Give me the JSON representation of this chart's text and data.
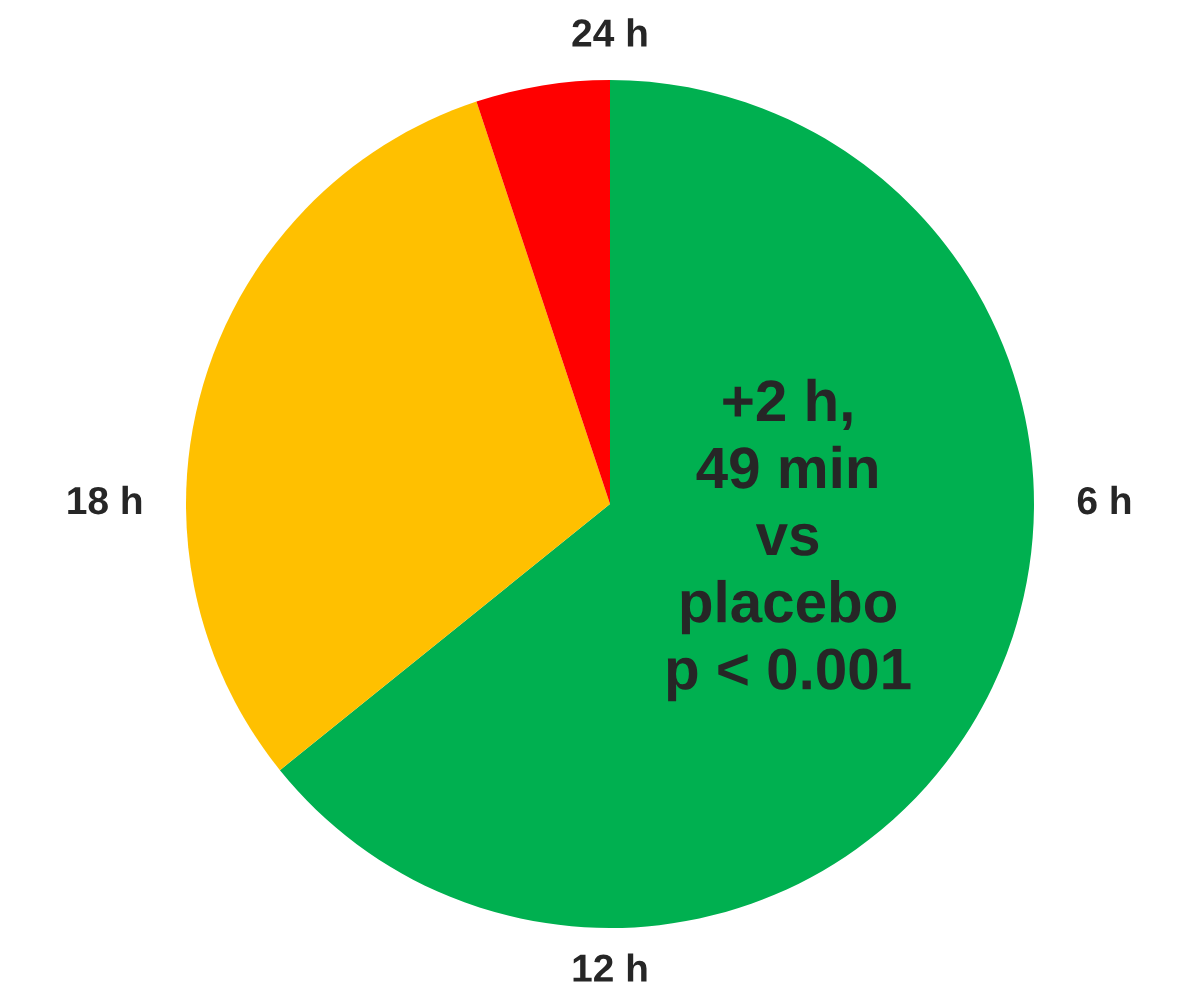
{
  "chart_data": {
    "type": "pie",
    "categories": [
      null,
      null,
      null
    ],
    "values": [
      64.2,
      30.7,
      5.1
    ],
    "colors": [
      "#00b050",
      "#ffc000",
      "#ff0000"
    ],
    "annotations": [
      "24 h",
      "6 h",
      "12 h",
      "18 h",
      "+2 h,\n49 min\nvs\nplacebo\np < 0.001"
    ]
  }
}
